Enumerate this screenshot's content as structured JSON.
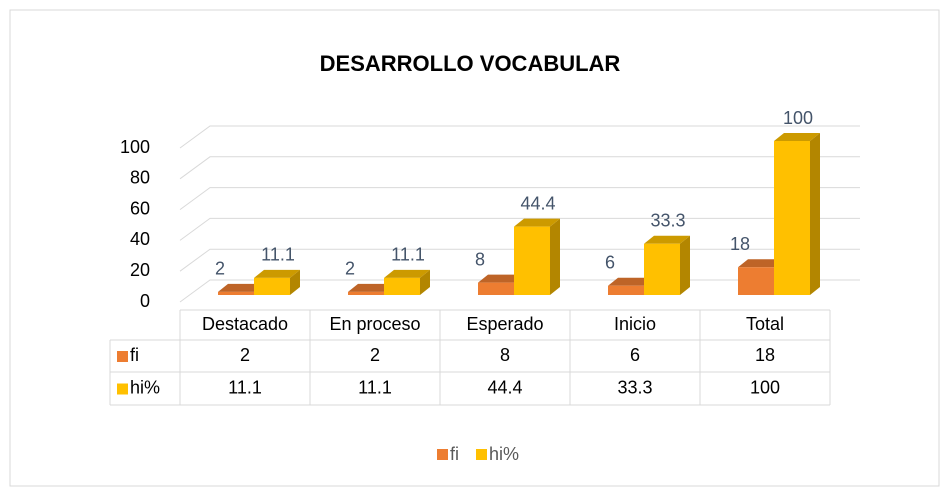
{
  "chart_data": {
    "type": "bar3d",
    "title": "DESARROLLO VOCABULAR",
    "categories": [
      "Destacado",
      "En proceso",
      "Esperado",
      "Inicio",
      "Total"
    ],
    "series": [
      {
        "name": "fi",
        "color": "#ed7d31",
        "values": [
          2,
          2,
          8,
          6,
          18
        ]
      },
      {
        "name": "hi%",
        "color": "#ffc000",
        "values": [
          11.1,
          11.1,
          44.4,
          33.3,
          100
        ]
      }
    ],
    "ylim": [
      0,
      100
    ],
    "yticks": [
      0,
      20,
      40,
      60,
      80,
      100
    ],
    "grid": true,
    "legend": "bottom",
    "data_table": true
  }
}
